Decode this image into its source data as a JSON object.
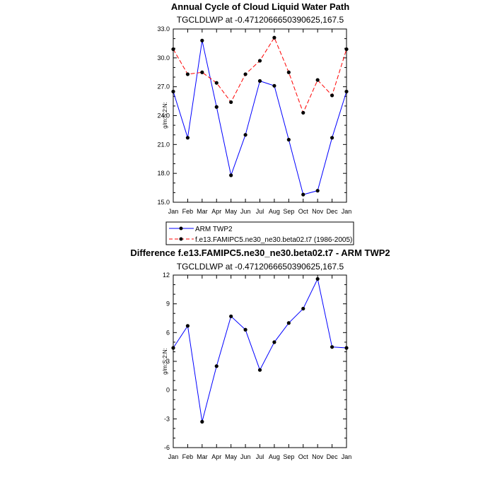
{
  "chart_data": [
    {
      "type": "line",
      "title": "Annual Cycle of Cloud Liquid Water Path",
      "subtitle": "TGCLDLWP at -0.4712066650390625,167.5",
      "ylabel": "g/m:S:2:N:",
      "xlabel": "",
      "categories": [
        "Jan",
        "Feb",
        "Mar",
        "Apr",
        "May",
        "Jun",
        "Jul",
        "Aug",
        "Sep",
        "Oct",
        "Nov",
        "Dec",
        "Jan"
      ],
      "ylim": [
        15,
        33
      ],
      "yticks": [
        15,
        18,
        21,
        24,
        27,
        30,
        33
      ],
      "ytick_labels": [
        "15.0",
        "18.0",
        "21.0",
        "24.0",
        "27.0",
        "30.0",
        "33.0"
      ],
      "series": [
        {
          "name": "ARM TWP2",
          "color": "#0000ff",
          "dash": "solid",
          "values": [
            26.5,
            21.7,
            31.8,
            24.9,
            17.8,
            22.0,
            27.6,
            27.1,
            21.5,
            15.8,
            16.2,
            21.7,
            26.5
          ]
        },
        {
          "name": "f.e13.FAMIPC5.ne30_ne30.beta02.t7 (1986-2005)",
          "color": "#ff0000",
          "dash": "dashed",
          "values": [
            30.9,
            28.3,
            28.5,
            27.4,
            25.4,
            28.3,
            29.7,
            32.1,
            28.5,
            24.3,
            27.7,
            26.1,
            30.9
          ]
        }
      ],
      "legend": "bottom"
    },
    {
      "type": "line",
      "title": "Difference f.e13.FAMIPC5.ne30_ne30.beta02.t7 - ARM TWP2",
      "subtitle": "TGCLDLWP at -0.4712066650390625,167.5",
      "ylabel": "g/m:S:2:N:",
      "xlabel": "",
      "categories": [
        "Jan",
        "Feb",
        "Mar",
        "Apr",
        "May",
        "Jun",
        "Jul",
        "Aug",
        "Sep",
        "Oct",
        "Nov",
        "Dec",
        "Jan"
      ],
      "ylim": [
        -6,
        12
      ],
      "yticks": [
        -6,
        -3,
        0,
        3,
        6,
        9,
        12
      ],
      "ytick_labels": [
        "-6",
        "-3",
        "0",
        "3",
        "6",
        "9",
        "12"
      ],
      "series": [
        {
          "name": "Difference",
          "color": "#0000ff",
          "dash": "solid",
          "values": [
            4.4,
            6.7,
            -3.3,
            2.5,
            7.7,
            6.3,
            2.1,
            5.0,
            7.0,
            8.5,
            11.6,
            4.5,
            4.4
          ]
        }
      ]
    }
  ]
}
